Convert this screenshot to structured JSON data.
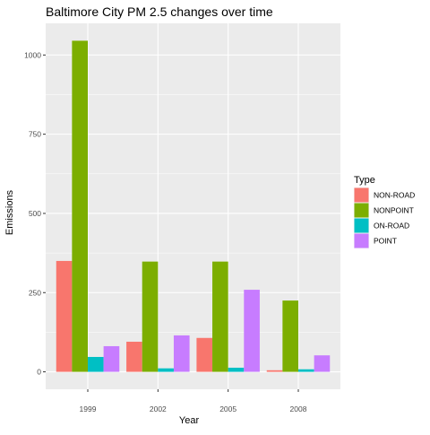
{
  "chart_data": {
    "type": "bar",
    "title": "Baltimore City PM 2.5 changes over time",
    "xlabel": "Year",
    "ylabel": "Emissions",
    "categories": [
      "1999",
      "2002",
      "2005",
      "2008"
    ],
    "series": [
      {
        "name": "NON-ROAD",
        "color": "#F8766D",
        "values": [
          350,
          95,
          107,
          5
        ]
      },
      {
        "name": "NONPOINT",
        "color": "#7CAE00",
        "values": [
          1045,
          348,
          348,
          225
        ]
      },
      {
        "name": "ON-ROAD",
        "color": "#00BFC4",
        "values": [
          47,
          11,
          13,
          8
        ]
      },
      {
        "name": "POINT",
        "color": "#C77CFF",
        "values": [
          81,
          115,
          259,
          52
        ]
      }
    ],
    "ylim": [
      -55,
      1100
    ],
    "yticks": [
      0,
      250,
      500,
      750,
      1000
    ],
    "ytick_labels": [
      "0",
      "250",
      "500",
      "750",
      "1000"
    ],
    "grid": true,
    "legend": {
      "title": "Type",
      "placement": "right"
    },
    "colors": {
      "panel_background": "#EBEBEB",
      "grid": "#FFFFFF",
      "text": "#000000",
      "tick_text": "#4D4D4D"
    }
  }
}
